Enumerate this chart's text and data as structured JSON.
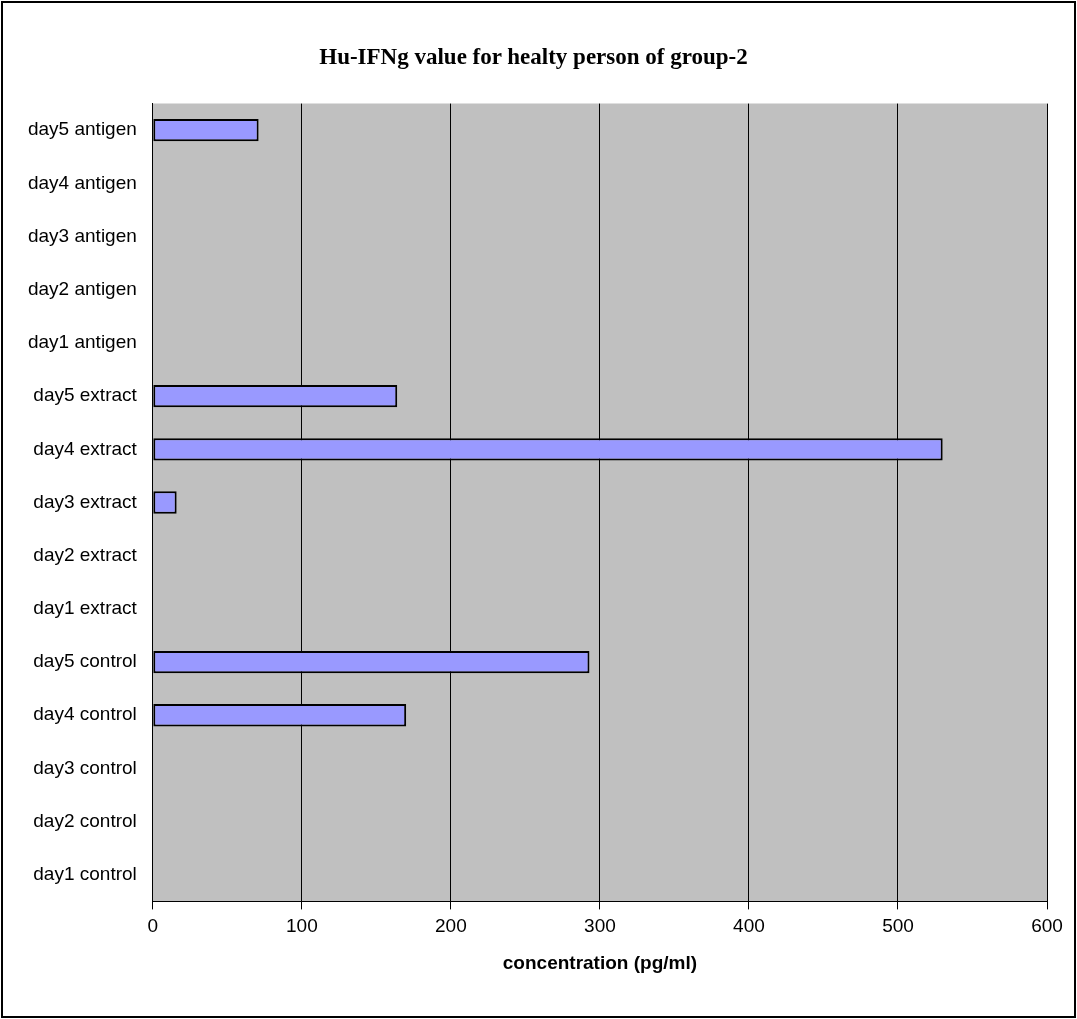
{
  "chart_data": {
    "type": "bar",
    "orientation": "horizontal",
    "title": "Hu-IFNg value for healty person of group-2",
    "xlabel": "concentration (pg/ml)",
    "categories": [
      "day5 antigen",
      "day4 antigen",
      "day3 antigen",
      "day2 antigen",
      "day1 antigen",
      "day5 extract",
      "day4 extract",
      "day3 extract",
      "day2 extract",
      "day1 extract",
      "day5 control",
      "day4 control",
      "day3 control",
      "day2 control",
      "day1 control"
    ],
    "values": [
      71,
      null,
      null,
      null,
      null,
      164,
      530,
      16,
      null,
      null,
      293,
      170,
      null,
      null,
      null
    ],
    "color": "#9999ff",
    "xlim": [
      0,
      600
    ],
    "xticks": [
      0,
      100,
      200,
      300,
      400,
      500,
      600
    ],
    "grid": "x",
    "legend": false
  }
}
